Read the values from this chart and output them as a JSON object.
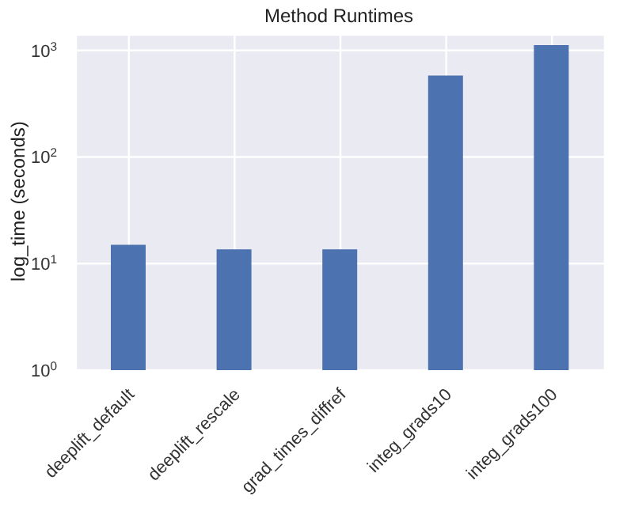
{
  "chart_data": {
    "type": "bar",
    "title": "Method Runtimes",
    "ylabel": "log_time (seconds)",
    "categories": [
      "deeplift_default",
      "deeplift_rescale",
      "grad_times_diffref",
      "integ_grads10",
      "integ_grads100"
    ],
    "values": [
      15,
      13.6,
      13.6,
      580,
      1120
    ],
    "color": "#4c72b0",
    "log": true,
    "ylim": [
      1,
      1400
    ],
    "yticks": [
      {
        "value": 1,
        "label": "10$^{0}$"
      },
      {
        "value": 10,
        "label": "10$^{1}$"
      },
      {
        "value": 100,
        "label": "10$^{2}$"
      },
      {
        "value": 1000,
        "label": "10$^{3}$"
      }
    ],
    "grid": true
  }
}
